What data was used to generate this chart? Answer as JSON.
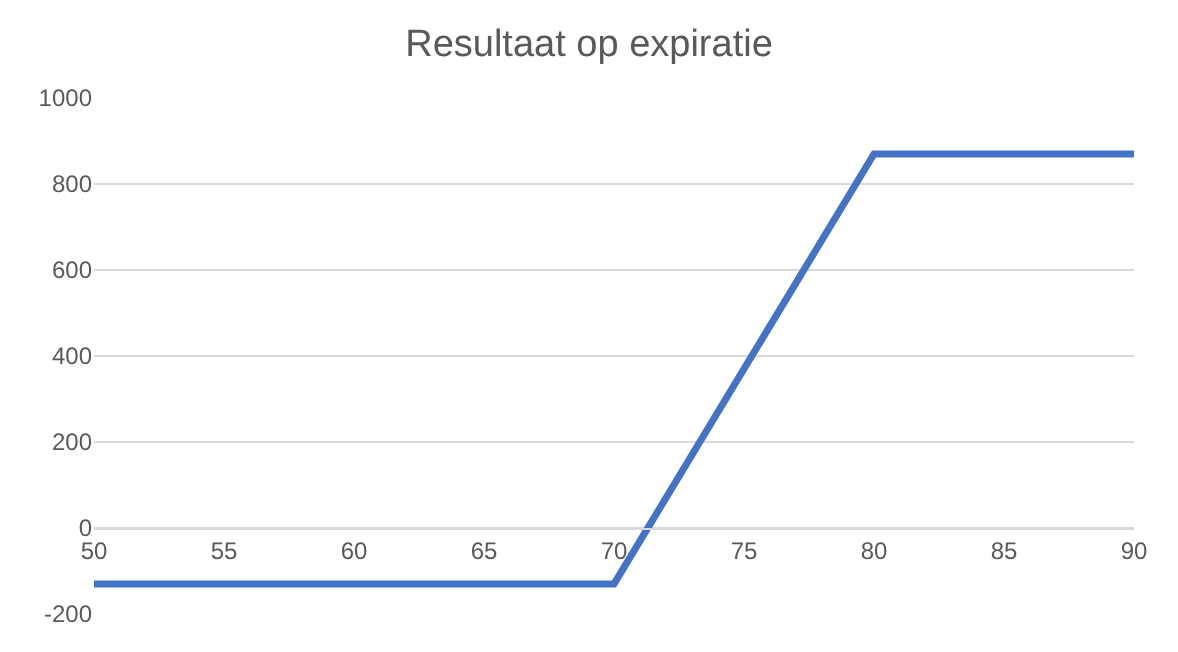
{
  "chart_data": {
    "type": "line",
    "title": "Resultaat op expiratie",
    "x": [
      50,
      70,
      80,
      90
    ],
    "series": [
      {
        "color": "#4472c4",
        "values": [
          -130,
          -130,
          870,
          870
        ]
      }
    ],
    "xlim": [
      50,
      90
    ],
    "xticks": [
      50,
      55,
      60,
      65,
      70,
      75,
      80,
      85,
      90
    ],
    "ylim": [
      -200,
      1000
    ],
    "yticks": [
      -200,
      0,
      200,
      400,
      600,
      800,
      1000
    ],
    "grid": "y",
    "marker": "none",
    "line_style": "solid"
  }
}
